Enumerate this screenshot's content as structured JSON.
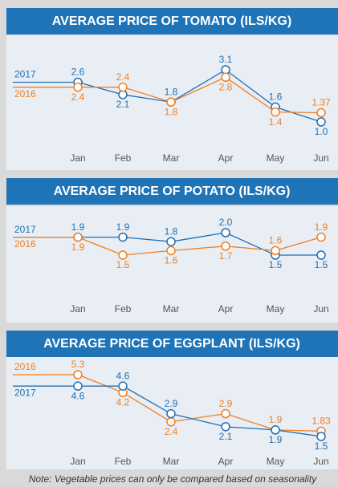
{
  "chart_data": [
    {
      "type": "line",
      "title": "AVERAGE PRICE OF TOMATO (ILS/KG)",
      "categories": [
        "Jan",
        "Feb",
        "Mar",
        "Apr",
        "May",
        "Jun"
      ],
      "series": [
        {
          "name": "2017",
          "color": "#1f6fb5",
          "values": [
            2.6,
            2.1,
            1.8,
            3.1,
            1.6,
            1.0
          ],
          "value_labels": [
            "2.6",
            "2.1",
            "1.8",
            "3.1",
            "1.6",
            "1.0"
          ]
        },
        {
          "name": "2016",
          "color": "#f07f22",
          "values": [
            2.4,
            2.4,
            1.8,
            2.8,
            1.4,
            1.37
          ],
          "value_labels": [
            "2.4",
            "2.4",
            "1.8",
            "2.8",
            "1.4",
            "1.37"
          ]
        }
      ]
    },
    {
      "type": "line",
      "title": "AVERAGE PRICE OF POTATO  (ILS/KG)",
      "categories": [
        "Jan",
        "Feb",
        "Mar",
        "Apr",
        "May",
        "Jun"
      ],
      "series": [
        {
          "name": "2017",
          "color": "#1f6fb5",
          "values": [
            1.9,
            1.9,
            1.8,
            2.0,
            1.5,
            1.5
          ],
          "value_labels": [
            "1.9",
            "1.9",
            "1.8",
            "2.0",
            "1.5",
            "1.5"
          ]
        },
        {
          "name": "2016",
          "color": "#f07f22",
          "values": [
            1.9,
            1.5,
            1.6,
            1.7,
            1.6,
            1.9
          ],
          "value_labels": [
            "1.9",
            "1.5",
            "1.6",
            "1.7",
            "1.6",
            "1.9"
          ]
        }
      ]
    },
    {
      "type": "line",
      "title": "AVERAGE PRICE OF EGGPLANT (ILS/KG)",
      "categories": [
        "Jan",
        "Feb",
        "Mar",
        "Apr",
        "May",
        "Jun"
      ],
      "series": [
        {
          "name": "2016",
          "color": "#f07f22",
          "values": [
            5.3,
            4.2,
            2.4,
            2.9,
            1.9,
            1.83
          ],
          "value_labels": [
            "5.3",
            "4.2",
            "2.4",
            "2.9",
            "1.9",
            "1.83"
          ]
        },
        {
          "name": "2017",
          "color": "#1f6fb5",
          "values": [
            4.6,
            4.6,
            2.9,
            2.1,
            1.9,
            1.5
          ],
          "value_labels": [
            "4.6",
            "4.6",
            "2.9",
            "2.1",
            "1.9",
            "1.5"
          ]
        }
      ]
    }
  ],
  "note": "Note: Vegetable prices can only be compared based on seasonality"
}
